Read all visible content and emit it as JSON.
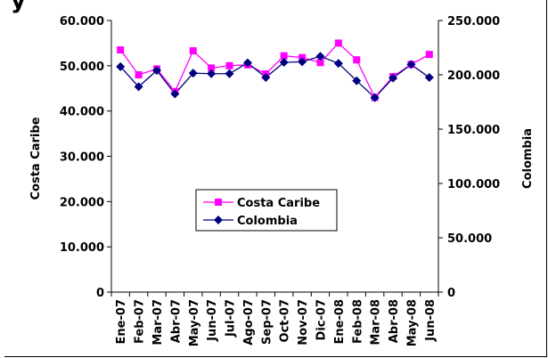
{
  "title_fragment": "y",
  "chart_data": {
    "type": "line",
    "categories": [
      "Ene-07",
      "Feb-07",
      "Mar-07",
      "Abr-07",
      "May-07",
      "Jun-07",
      "Jul-07",
      "Ago-07",
      "Sep-07",
      "Oct-07",
      "Nov-07",
      "Dic-07",
      "Ene-08",
      "Feb-08",
      "Mar-08",
      "Abr-08",
      "May-08",
      "Jun-08"
    ],
    "y_left": {
      "label": "Costa Caribe",
      "ylim": [
        0,
        60000
      ],
      "ticks": [
        "0",
        "10.000",
        "20.000",
        "30.000",
        "40.000",
        "50.000",
        "60.000"
      ]
    },
    "y_right": {
      "label": "Colombia",
      "ylim": [
        0,
        250000
      ],
      "ticks": [
        "0",
        "50.000",
        "100.000",
        "150.000",
        "200.000",
        "250.000"
      ]
    },
    "series": [
      {
        "name": "Costa Caribe",
        "axis": "left",
        "color": "#ff00ff",
        "marker": "square",
        "values": [
          53500,
          48000,
          49300,
          44300,
          53300,
          49500,
          50000,
          50200,
          48200,
          52200,
          51800,
          50700,
          55000,
          51300,
          43000,
          47600,
          50300,
          52500
        ]
      },
      {
        "name": "Colombia",
        "axis": "right",
        "color": "#000080",
        "marker": "diamond",
        "values": [
          207500,
          189000,
          204000,
          182500,
          201500,
          201000,
          201000,
          211000,
          197500,
          211500,
          212000,
          217000,
          210500,
          194500,
          179000,
          197000,
          209500,
          197500
        ]
      }
    ],
    "legend": {
      "placement": "center",
      "entries": [
        "Costa Caribe",
        "Colombia"
      ]
    },
    "grid": false
  }
}
